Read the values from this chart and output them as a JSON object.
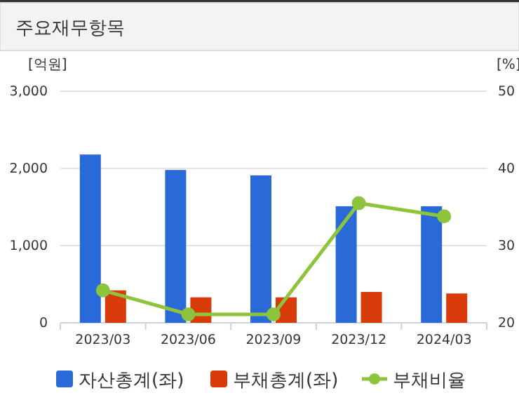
{
  "chart_data": {
    "type": "bar",
    "title": "주요재무항목",
    "ylabel": "[억원]",
    "y2label": "[%]",
    "categories": [
      "2023/03",
      "2023/06",
      "2023/09",
      "2023/12",
      "2024/03"
    ],
    "series": [
      {
        "name": "자산총계(좌)",
        "color": "#2a6ad8",
        "values": [
          2180,
          1980,
          1910,
          1510,
          1510
        ]
      },
      {
        "name": "부채총계(좌)",
        "color": "#d83a0a",
        "values": [
          420,
          330,
          330,
          400,
          380
        ]
      },
      {
        "name": "부채비율",
        "type": "line",
        "axis": "y2",
        "color": "#8cc43c",
        "marker": "circle",
        "values": [
          24.2,
          21.1,
          21.1,
          35.5,
          33.8
        ]
      }
    ],
    "ylim": [
      0,
      3000
    ],
    "yticks": [
      0,
      {
        "value": 1000,
        "label": "1,000"
      },
      {
        "value": 2000,
        "label": "2,000"
      },
      {
        "value": 3000,
        "label": "3,000"
      }
    ],
    "y2lim": [
      20,
      50
    ],
    "y2ticks": [
      20,
      30,
      40,
      50
    ],
    "grid": "y",
    "legend": "bottom"
  }
}
